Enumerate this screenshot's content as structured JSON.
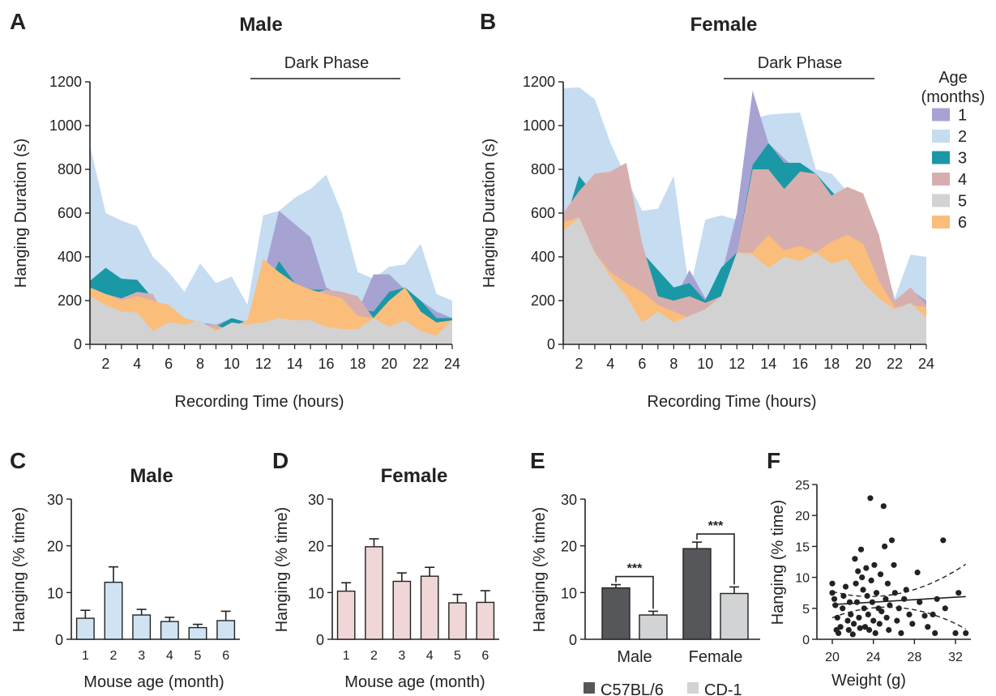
{
  "colors": {
    "age1": "#a6a3d3",
    "age2": "#c5dcf1",
    "age3": "#1a98a6",
    "age4": "#d7aeae",
    "age5": "#d2d2d2",
    "age6": "#fbbd7a",
    "c57": "#55575b",
    "cd1": "#d1d3d4",
    "bar_male": "#cfe3f5",
    "bar_female": "#f0d6d6",
    "axis": "#222222",
    "scatter": "#222222"
  },
  "panels": {
    "A": {
      "letter": "A",
      "title": "Male",
      "phase": "Dark Phase",
      "xlabel": "Recording Time (hours)",
      "ylabel": "Hanging Duration (s)"
    },
    "B": {
      "letter": "B",
      "title": "Female",
      "phase": "Dark Phase",
      "xlabel": "Recording Time (hours)",
      "ylabel": "Hanging Duration (s)"
    },
    "C": {
      "letter": "C",
      "title": "Male",
      "xlabel": "Mouse age (month)",
      "ylabel": "Hanging (% time)"
    },
    "D": {
      "letter": "D",
      "title": "Female",
      "xlabel": "Mouse age (month)",
      "ylabel": "Hanging (% time)"
    },
    "E": {
      "letter": "E",
      "ylabel": "Hanging (% time)",
      "sig": "***",
      "legend": [
        "C57BL/6",
        "CD-1"
      ]
    },
    "F": {
      "letter": "F",
      "xlabel": "Weight (g)",
      "ylabel": "Hanging (% time)"
    }
  },
  "legend": {
    "title_line1": "Age",
    "title_line2": "(months)",
    "items": [
      {
        "label": "1",
        "color": "#a6a3d3"
      },
      {
        "label": "2",
        "color": "#c5dcf1"
      },
      {
        "label": "3",
        "color": "#1a98a6"
      },
      {
        "label": "4",
        "color": "#d7aeae"
      },
      {
        "label": "5",
        "color": "#d2d2d2"
      },
      {
        "label": "6",
        "color": "#fbbd7a"
      }
    ]
  },
  "chart_data": [
    {
      "id": "A",
      "type": "area",
      "title": "Male",
      "xlabel": "Recording Time (hours)",
      "ylabel": "Hanging Duration (s)",
      "x": [
        1,
        2,
        3,
        4,
        5,
        6,
        7,
        8,
        9,
        10,
        11,
        12,
        13,
        14,
        15,
        16,
        17,
        18,
        19,
        20,
        21,
        22,
        23,
        24
      ],
      "xlim": [
        1,
        24
      ],
      "ylim": [
        0,
        1200
      ],
      "xticks": [
        2,
        4,
        6,
        8,
        10,
        12,
        14,
        16,
        18,
        20,
        22,
        24
      ],
      "yticks": [
        0,
        200,
        400,
        600,
        800,
        1000,
        1200
      ],
      "phase_span": [
        11,
        21
      ],
      "series": [
        {
          "name": "2",
          "values": [
            910,
            600,
            565,
            540,
            400,
            330,
            240,
            370,
            280,
            310,
            180,
            590,
            610,
            670,
            710,
            775,
            600,
            330,
            300,
            355,
            365,
            460,
            230,
            200
          ]
        },
        {
          "name": "1",
          "values": [
            260,
            300,
            260,
            240,
            180,
            140,
            120,
            100,
            90,
            120,
            100,
            310,
            610,
            550,
            490,
            260,
            220,
            150,
            320,
            320,
            250,
            200,
            150,
            120
          ]
        },
        {
          "name": "3",
          "values": [
            290,
            350,
            300,
            295,
            210,
            150,
            110,
            100,
            80,
            120,
            100,
            230,
            380,
            280,
            250,
            250,
            150,
            160,
            150,
            240,
            260,
            200,
            120,
            120
          ]
        },
        {
          "name": "4",
          "values": [
            250,
            230,
            210,
            240,
            230,
            100,
            100,
            90,
            90,
            60,
            100,
            170,
            200,
            280,
            230,
            250,
            240,
            220,
            120,
            200,
            230,
            130,
            90,
            110
          ]
        },
        {
          "name": "6",
          "values": [
            260,
            230,
            200,
            220,
            200,
            180,
            120,
            100,
            70,
            80,
            110,
            390,
            330,
            280,
            250,
            230,
            210,
            130,
            120,
            200,
            260,
            150,
            100,
            110
          ]
        },
        {
          "name": "5",
          "values": [
            220,
            180,
            150,
            145,
            60,
            100,
            90,
            110,
            60,
            100,
            90,
            100,
            120,
            110,
            110,
            80,
            70,
            70,
            120,
            80,
            110,
            60,
            40,
            110
          ]
        }
      ]
    },
    {
      "id": "B",
      "type": "area",
      "title": "Female",
      "xlabel": "Recording Time (hours)",
      "ylabel": "Hanging Duration (s)",
      "x": [
        1,
        2,
        3,
        4,
        5,
        6,
        7,
        8,
        9,
        10,
        11,
        12,
        13,
        14,
        15,
        16,
        17,
        18,
        19,
        20,
        21,
        22,
        23,
        24
      ],
      "xlim": [
        1,
        24
      ],
      "ylim": [
        0,
        1200
      ],
      "xticks": [
        2,
        4,
        6,
        8,
        10,
        12,
        14,
        16,
        18,
        20,
        22,
        24
      ],
      "yticks": [
        0,
        200,
        400,
        600,
        800,
        1000,
        1200
      ],
      "phase_span": [
        11,
        21
      ],
      "series": [
        {
          "name": "2",
          "values": [
            1170,
            1175,
            1120,
            920,
            760,
            610,
            620,
            770,
            240,
            570,
            590,
            570,
            1030,
            1050,
            1055,
            1060,
            800,
            780,
            700,
            420,
            460,
            210,
            410,
            400
          ]
        },
        {
          "name": "1",
          "values": [
            540,
            580,
            620,
            640,
            500,
            380,
            300,
            200,
            340,
            210,
            310,
            600,
            1160,
            920,
            850,
            780,
            760,
            700,
            620,
            560,
            420,
            200,
            250,
            200
          ]
        },
        {
          "name": "3",
          "values": [
            530,
            770,
            680,
            600,
            530,
            420,
            340,
            260,
            280,
            200,
            350,
            420,
            820,
            920,
            830,
            830,
            780,
            700,
            620,
            560,
            400,
            200,
            220,
            180
          ]
        },
        {
          "name": "4",
          "values": [
            600,
            700,
            780,
            790,
            830,
            460,
            220,
            200,
            220,
            190,
            220,
            420,
            800,
            800,
            710,
            790,
            780,
            680,
            720,
            690,
            500,
            200,
            260,
            180
          ]
        },
        {
          "name": "6",
          "values": [
            560,
            580,
            420,
            330,
            280,
            240,
            180,
            150,
            120,
            160,
            200,
            420,
            420,
            500,
            430,
            450,
            420,
            470,
            500,
            460,
            290,
            170,
            180,
            170
          ]
        },
        {
          "name": "5",
          "values": [
            520,
            580,
            420,
            310,
            220,
            100,
            150,
            100,
            130,
            160,
            220,
            420,
            410,
            350,
            400,
            380,
            420,
            370,
            390,
            280,
            210,
            160,
            190,
            120
          ]
        }
      ]
    },
    {
      "id": "C",
      "type": "bar",
      "title": "Male",
      "xlabel": "Mouse age (month)",
      "ylabel": "Hanging (% time)",
      "categories": [
        "1",
        "2",
        "3",
        "4",
        "5",
        "6"
      ],
      "values": [
        4.5,
        12.2,
        5.2,
        3.8,
        2.5,
        4.0
      ],
      "errors": [
        1.7,
        3.3,
        1.2,
        0.9,
        0.7,
        2.0
      ],
      "ylim": [
        0,
        30
      ],
      "yticks": [
        0,
        10,
        20,
        30
      ]
    },
    {
      "id": "D",
      "type": "bar",
      "title": "Female",
      "xlabel": "Mouse age (month)",
      "ylabel": "Hanging (% time)",
      "categories": [
        "1",
        "2",
        "3",
        "4",
        "5",
        "6"
      ],
      "values": [
        10.3,
        19.8,
        12.4,
        13.5,
        7.8,
        7.9
      ],
      "errors": [
        1.8,
        1.7,
        1.8,
        1.9,
        1.8,
        2.5
      ],
      "ylim": [
        0,
        30
      ],
      "yticks": [
        0,
        10,
        20,
        30
      ]
    },
    {
      "id": "E",
      "type": "bar",
      "ylabel": "Hanging (% time)",
      "categories": [
        "Male",
        "Female"
      ],
      "series": [
        {
          "name": "C57BL/6",
          "values": [
            11.0,
            19.4
          ],
          "errors": [
            0.7,
            1.4
          ]
        },
        {
          "name": "CD-1",
          "values": [
            5.2,
            9.8
          ],
          "errors": [
            0.8,
            1.4
          ]
        }
      ],
      "ylim": [
        0,
        30
      ],
      "yticks": [
        0,
        10,
        20,
        30
      ],
      "annotations": [
        "***",
        "***"
      ]
    },
    {
      "id": "F",
      "type": "scatter",
      "xlabel": "Weight (g)",
      "ylabel": "Hanging (% time)",
      "xlim": [
        18.5,
        33.5
      ],
      "ylim": [
        0,
        25
      ],
      "xticks": [
        20,
        24,
        28,
        32
      ],
      "yticks": [
        0,
        5,
        10,
        15,
        20,
        25
      ],
      "points": [
        [
          20,
          9
        ],
        [
          20,
          7.5
        ],
        [
          20.2,
          6.5
        ],
        [
          20.3,
          5.5
        ],
        [
          20.5,
          3.5
        ],
        [
          20.4,
          1.5
        ],
        [
          20.6,
          1
        ],
        [
          20.8,
          2
        ],
        [
          21,
          5
        ],
        [
          21.1,
          7
        ],
        [
          21.3,
          8.5
        ],
        [
          21.5,
          3
        ],
        [
          21.6,
          1.5
        ],
        [
          21.7,
          6
        ],
        [
          21.8,
          4
        ],
        [
          22,
          0.8
        ],
        [
          22.1,
          2.5
        ],
        [
          22.2,
          13
        ],
        [
          22.3,
          9
        ],
        [
          22.4,
          6
        ],
        [
          22.5,
          11
        ],
        [
          22.6,
          3.5
        ],
        [
          22.7,
          1.8
        ],
        [
          22.8,
          14.5
        ],
        [
          22.9,
          10
        ],
        [
          23,
          8
        ],
        [
          23.1,
          5
        ],
        [
          23.2,
          2
        ],
        [
          23.3,
          11.5
        ],
        [
          23.4,
          7
        ],
        [
          23.5,
          4
        ],
        [
          23.6,
          1.5
        ],
        [
          23.7,
          22.8
        ],
        [
          23.8,
          9.5
        ],
        [
          23.9,
          6
        ],
        [
          24,
          3
        ],
        [
          24.1,
          12
        ],
        [
          24.2,
          1
        ],
        [
          24.3,
          7.5
        ],
        [
          24.5,
          5
        ],
        [
          24.6,
          2.5
        ],
        [
          24.7,
          10.5
        ],
        [
          24.8,
          4.5
        ],
        [
          25,
          21.5
        ],
        [
          25.1,
          15
        ],
        [
          25.2,
          6.5
        ],
        [
          25.3,
          3.5
        ],
        [
          25.4,
          9
        ],
        [
          25.5,
          1.5
        ],
        [
          25.6,
          5.5
        ],
        [
          25.8,
          16
        ],
        [
          26,
          12
        ],
        [
          26.1,
          7.5
        ],
        [
          26.3,
          3
        ],
        [
          26.5,
          5
        ],
        [
          26.7,
          1
        ],
        [
          27,
          6.5
        ],
        [
          27.2,
          8
        ],
        [
          27.5,
          4
        ],
        [
          27.8,
          2.5
        ],
        [
          28.3,
          10.8
        ],
        [
          28.5,
          6
        ],
        [
          29,
          3.8
        ],
        [
          29.3,
          2
        ],
        [
          29.8,
          4
        ],
        [
          30,
          1
        ],
        [
          30.2,
          6.5
        ],
        [
          30.8,
          16
        ],
        [
          31,
          5
        ],
        [
          32,
          1
        ],
        [
          32.3,
          7.5
        ],
        [
          33,
          1
        ]
      ],
      "fit": {
        "intercept": 3.6,
        "slope": 0.1
      }
    }
  ]
}
